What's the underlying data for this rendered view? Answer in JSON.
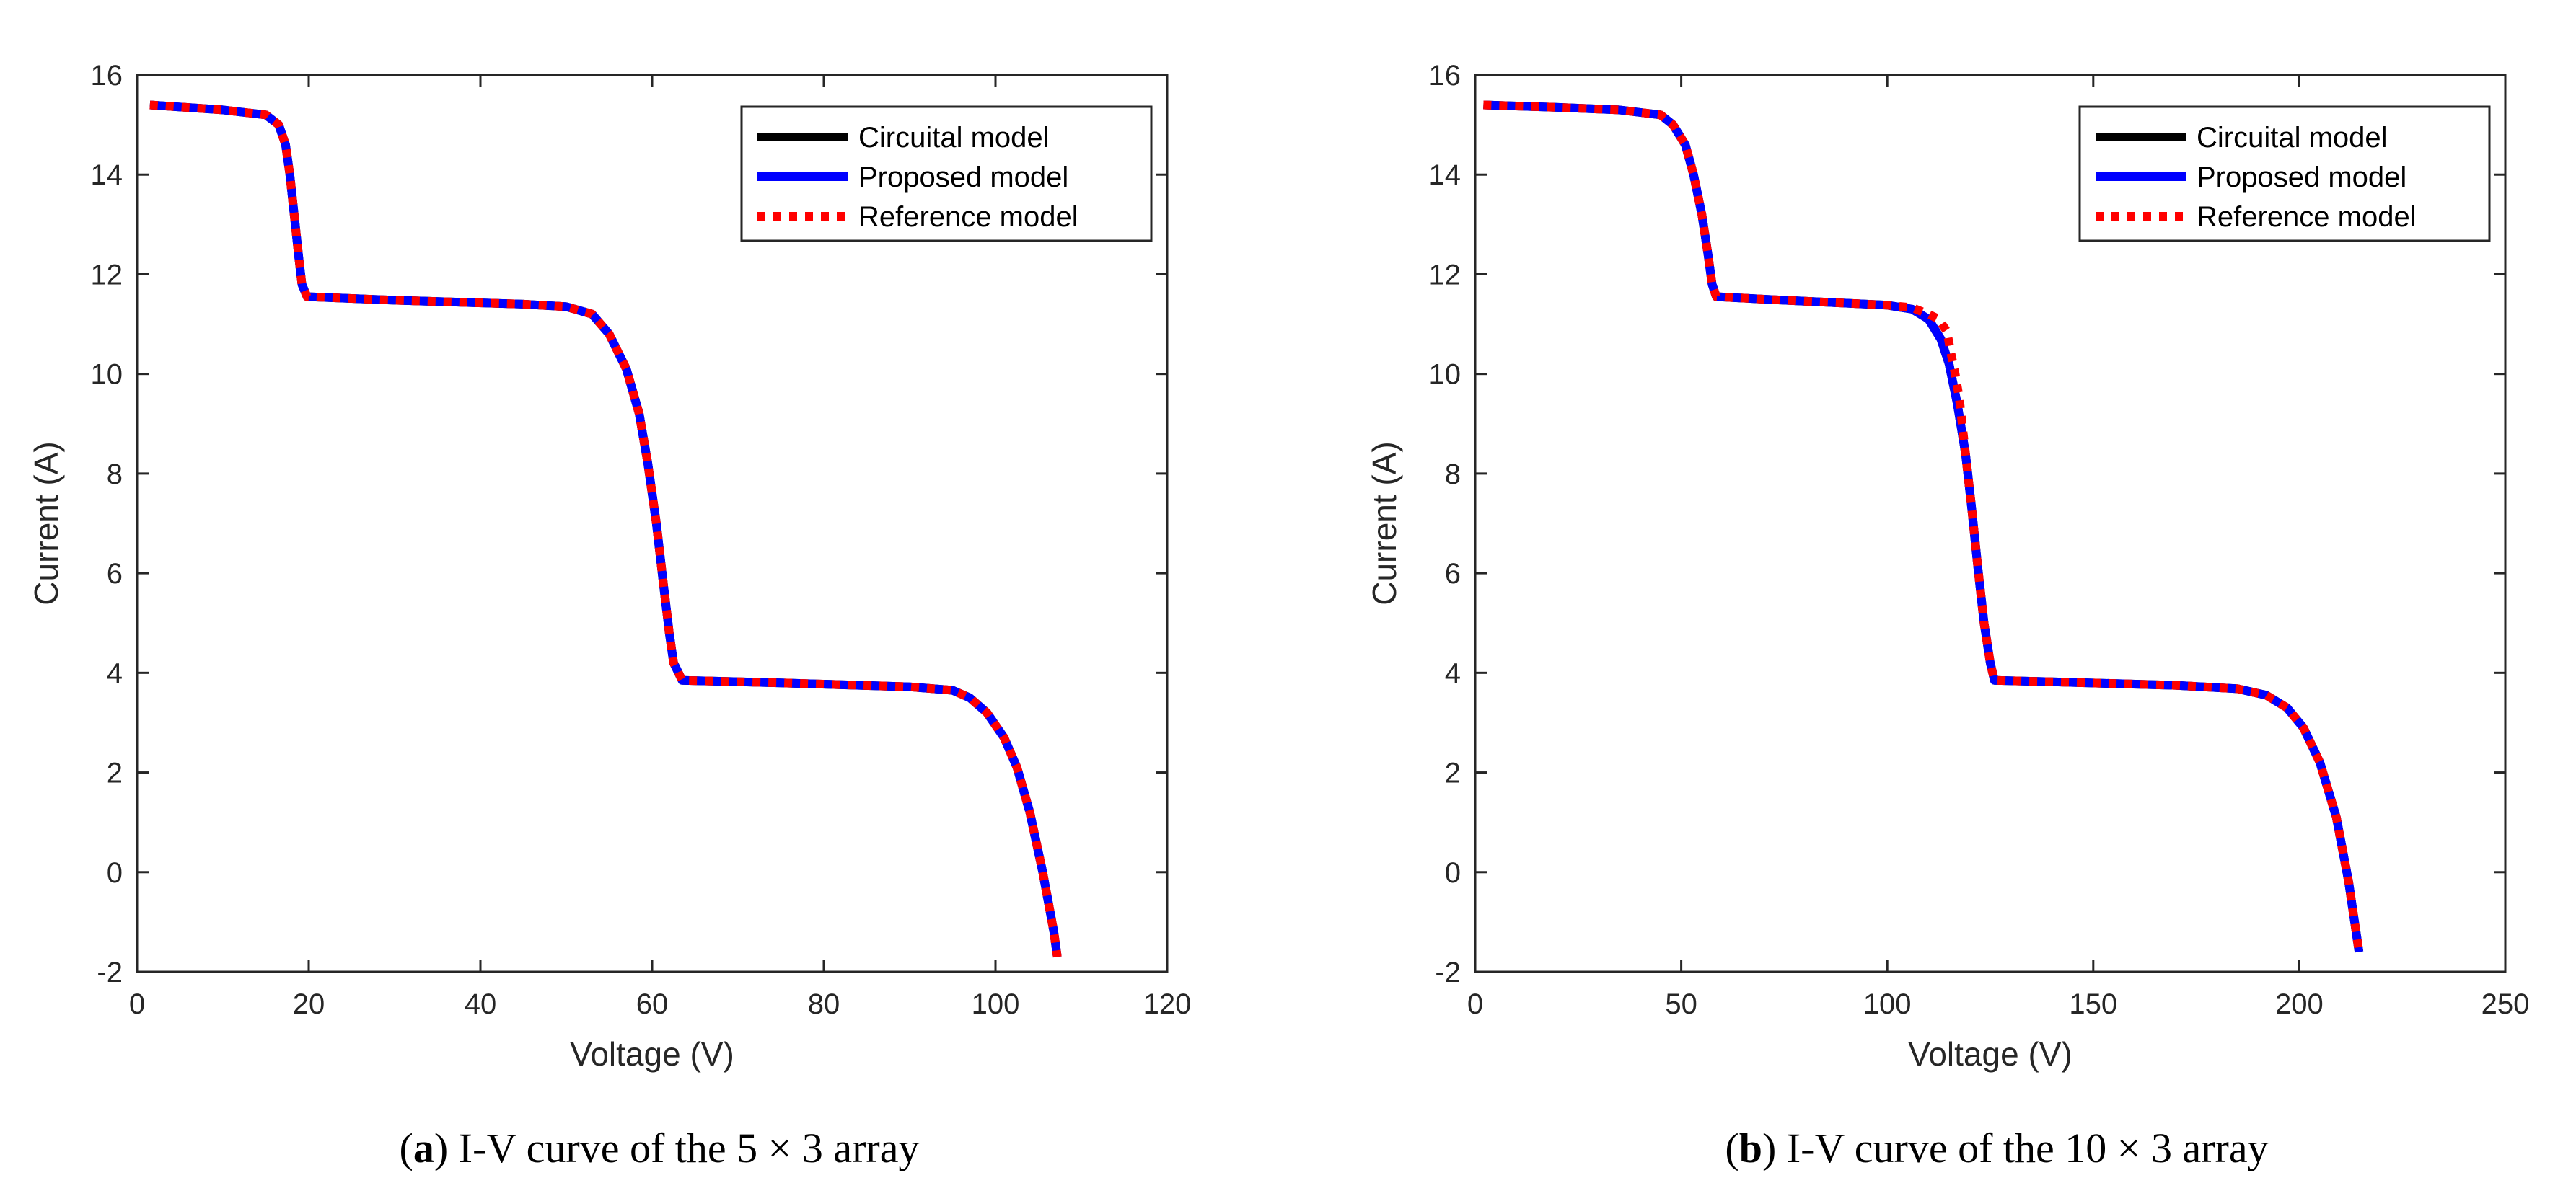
{
  "chart_data": [
    {
      "type": "line",
      "panel": "a",
      "caption_letter": "a",
      "caption_text": "I-V curve of the 5 × 3 array",
      "xlabel": "Voltage (V)",
      "ylabel": "Current (A)",
      "xlim": [
        0,
        120
      ],
      "ylim": [
        -2,
        16
      ],
      "xticks": [
        0,
        20,
        40,
        60,
        80,
        100,
        120
      ],
      "yticks": [
        -2,
        0,
        2,
        4,
        6,
        8,
        10,
        12,
        14,
        16
      ],
      "legend_position": "top-right",
      "series": [
        {
          "name": "Circuital model",
          "color": "#000000",
          "style": "solid",
          "x": [
            1.5,
            10,
            15,
            16.5,
            17.3,
            17.8,
            18.3,
            18.8,
            19.2,
            19.8,
            30,
            45,
            50,
            53,
            55,
            57,
            58.5,
            59.5,
            60.5,
            61.3,
            62.0,
            62.5,
            63.5,
            75,
            90,
            95,
            97,
            99,
            101,
            102.5,
            104,
            105.5,
            106.8,
            107.2
          ],
          "y": [
            15.4,
            15.3,
            15.2,
            15.0,
            14.6,
            14.0,
            13.2,
            12.4,
            11.8,
            11.55,
            11.48,
            11.4,
            11.35,
            11.2,
            10.8,
            10.1,
            9.2,
            8.2,
            7.0,
            5.8,
            4.8,
            4.2,
            3.85,
            3.8,
            3.72,
            3.65,
            3.5,
            3.2,
            2.7,
            2.1,
            1.2,
            0.0,
            -1.2,
            -1.7
          ]
        },
        {
          "name": "Proposed model",
          "color": "#0000ff",
          "style": "solid",
          "x": [
            1.5,
            10,
            15,
            16.5,
            17.3,
            17.8,
            18.3,
            18.8,
            19.2,
            19.8,
            30,
            45,
            50,
            53,
            55,
            57,
            58.5,
            59.5,
            60.5,
            61.3,
            62.0,
            62.5,
            63.5,
            75,
            90,
            95,
            97,
            99,
            101,
            102.5,
            104,
            105.5,
            106.8,
            107.2
          ],
          "y": [
            15.4,
            15.3,
            15.2,
            15.0,
            14.6,
            14.0,
            13.2,
            12.4,
            11.8,
            11.55,
            11.48,
            11.4,
            11.35,
            11.2,
            10.8,
            10.1,
            9.2,
            8.2,
            7.0,
            5.8,
            4.8,
            4.2,
            3.85,
            3.8,
            3.72,
            3.65,
            3.5,
            3.2,
            2.7,
            2.1,
            1.2,
            0.0,
            -1.2,
            -1.7
          ]
        },
        {
          "name": "Reference model",
          "color": "#ff0000",
          "style": "dotted",
          "x": [
            1.5,
            10,
            15,
            16.5,
            17.3,
            17.8,
            18.3,
            18.8,
            19.2,
            19.8,
            30,
            45,
            50,
            53,
            55,
            57,
            58.5,
            59.5,
            60.5,
            61.3,
            62.0,
            62.5,
            63.5,
            75,
            90,
            95,
            97,
            99,
            101,
            102.5,
            104,
            105.5,
            106.8,
            107.2
          ],
          "y": [
            15.4,
            15.3,
            15.2,
            15.0,
            14.6,
            14.0,
            13.2,
            12.4,
            11.8,
            11.55,
            11.48,
            11.4,
            11.35,
            11.2,
            10.8,
            10.1,
            9.2,
            8.2,
            7.0,
            5.8,
            4.8,
            4.2,
            3.85,
            3.8,
            3.72,
            3.65,
            3.5,
            3.2,
            2.7,
            2.1,
            1.2,
            0.0,
            -1.2,
            -1.7
          ]
        }
      ]
    },
    {
      "type": "line",
      "panel": "b",
      "caption_letter": "b",
      "caption_text": "I-V curve of the 10 × 3 array",
      "xlabel": "Voltage (V)",
      "ylabel": "Current (A)",
      "xlim": [
        0,
        250
      ],
      "ylim": [
        -2,
        16
      ],
      "xticks": [
        0,
        50,
        100,
        150,
        200,
        250
      ],
      "yticks": [
        -2,
        0,
        2,
        4,
        6,
        8,
        10,
        12,
        14,
        16
      ],
      "legend_position": "top-right",
      "series": [
        {
          "name": "Circuital model",
          "color": "#000000",
          "style": "solid",
          "x": [
            2,
            20,
            35,
            45,
            48,
            51,
            53,
            55,
            56.5,
            57.5,
            58.5,
            70,
            90,
            100,
            106,
            110,
            113,
            115,
            117,
            119,
            120.5,
            122,
            123.5,
            125,
            126,
            140,
            170,
            185,
            192,
            197,
            201,
            205,
            209,
            212,
            214.5
          ],
          "y": [
            15.4,
            15.35,
            15.3,
            15.2,
            15.0,
            14.6,
            14.0,
            13.2,
            12.4,
            11.8,
            11.55,
            11.5,
            11.42,
            11.38,
            11.3,
            11.1,
            10.7,
            10.2,
            9.4,
            8.4,
            7.3,
            6.1,
            5.0,
            4.2,
            3.85,
            3.82,
            3.75,
            3.68,
            3.55,
            3.3,
            2.9,
            2.2,
            1.1,
            -0.2,
            -1.6
          ]
        },
        {
          "name": "Proposed model",
          "color": "#0000ff",
          "style": "solid",
          "x": [
            2,
            20,
            35,
            45,
            48,
            51,
            53,
            55,
            56.5,
            57.5,
            58.5,
            70,
            90,
            100,
            106,
            110,
            113,
            115,
            117,
            119,
            120.5,
            122,
            123.5,
            125,
            126,
            140,
            170,
            185,
            192,
            197,
            201,
            205,
            209,
            212,
            214.5
          ],
          "y": [
            15.4,
            15.35,
            15.3,
            15.2,
            15.0,
            14.6,
            14.0,
            13.2,
            12.4,
            11.8,
            11.55,
            11.5,
            11.42,
            11.38,
            11.3,
            11.1,
            10.7,
            10.2,
            9.4,
            8.4,
            7.3,
            6.1,
            5.0,
            4.2,
            3.85,
            3.82,
            3.75,
            3.68,
            3.55,
            3.3,
            2.9,
            2.2,
            1.1,
            -0.2,
            -1.6
          ]
        },
        {
          "name": "Reference model",
          "color": "#ff0000",
          "style": "dotted",
          "x": [
            2,
            20,
            35,
            45,
            48,
            51,
            53,
            55,
            56.5,
            57.5,
            58.5,
            70,
            90,
            100,
            106,
            110,
            112.5,
            114.5,
            115.5,
            116.5,
            117.5,
            119,
            120.5,
            122,
            123.5,
            125,
            126,
            140,
            170,
            185,
            192,
            197,
            201,
            205,
            209,
            212,
            214.5
          ],
          "y": [
            15.4,
            15.35,
            15.3,
            15.2,
            15.0,
            14.6,
            14.0,
            13.2,
            12.4,
            11.8,
            11.55,
            11.5,
            11.42,
            11.38,
            11.33,
            11.2,
            11.1,
            10.85,
            10.4,
            10.0,
            9.5,
            8.4,
            7.3,
            6.1,
            5.0,
            4.2,
            3.85,
            3.82,
            3.75,
            3.68,
            3.55,
            3.3,
            2.9,
            2.2,
            1.1,
            -0.2,
            -1.6
          ]
        }
      ]
    }
  ]
}
